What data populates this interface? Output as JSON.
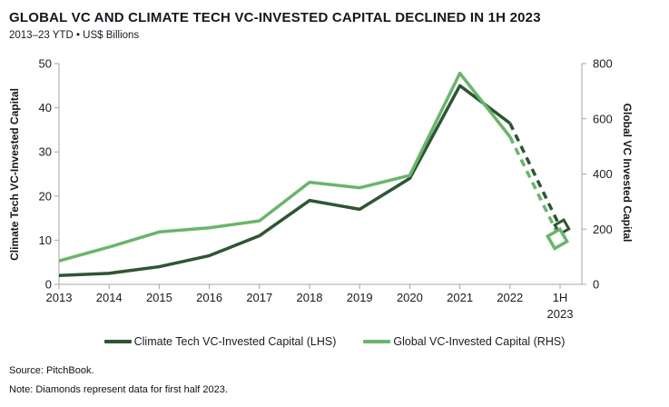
{
  "header": {
    "title": "GLOBAL VC AND CLIMATE TECH VC-INVESTED CAPITAL DECLINED IN 1H 2023",
    "subtitle": "2013–23 YTD • US$ Billions"
  },
  "chart_data": {
    "type": "line",
    "categories": [
      "2013",
      "2014",
      "2015",
      "2016",
      "2017",
      "2018",
      "2019",
      "2020",
      "2021",
      "2022",
      "1H 2023"
    ],
    "series": [
      {
        "name": "Climate Tech VC-Invested Capital (LHS)",
        "axis": "left",
        "color": "#2d5632",
        "values": [
          2,
          2.5,
          4,
          6.5,
          11,
          19,
          17,
          24,
          45,
          36.5,
          13
        ],
        "final_segment": "dashed",
        "final_marker": "open-diamond"
      },
      {
        "name": "Global VC-Invested Capital (RHS)",
        "axis": "right",
        "color": "#6ab56c",
        "values": [
          85,
          135,
          190,
          205,
          230,
          370,
          350,
          395,
          765,
          535,
          165
        ],
        "final_segment": "dashed",
        "final_marker": "open-diamond"
      }
    ],
    "left_axis": {
      "label": "Climate Tech VC-Invested Capital",
      "min": 0,
      "max": 50,
      "step": 10
    },
    "right_axis": {
      "label": "Global VC Invested Capital",
      "min": 0,
      "max": 800,
      "step": 200
    },
    "grid": false,
    "legend_position": "bottom",
    "axis_color": "#a6a6a6"
  },
  "footer": {
    "source": "Source: PitchBook.",
    "note": "Note: Diamonds represent data for first half 2023."
  }
}
